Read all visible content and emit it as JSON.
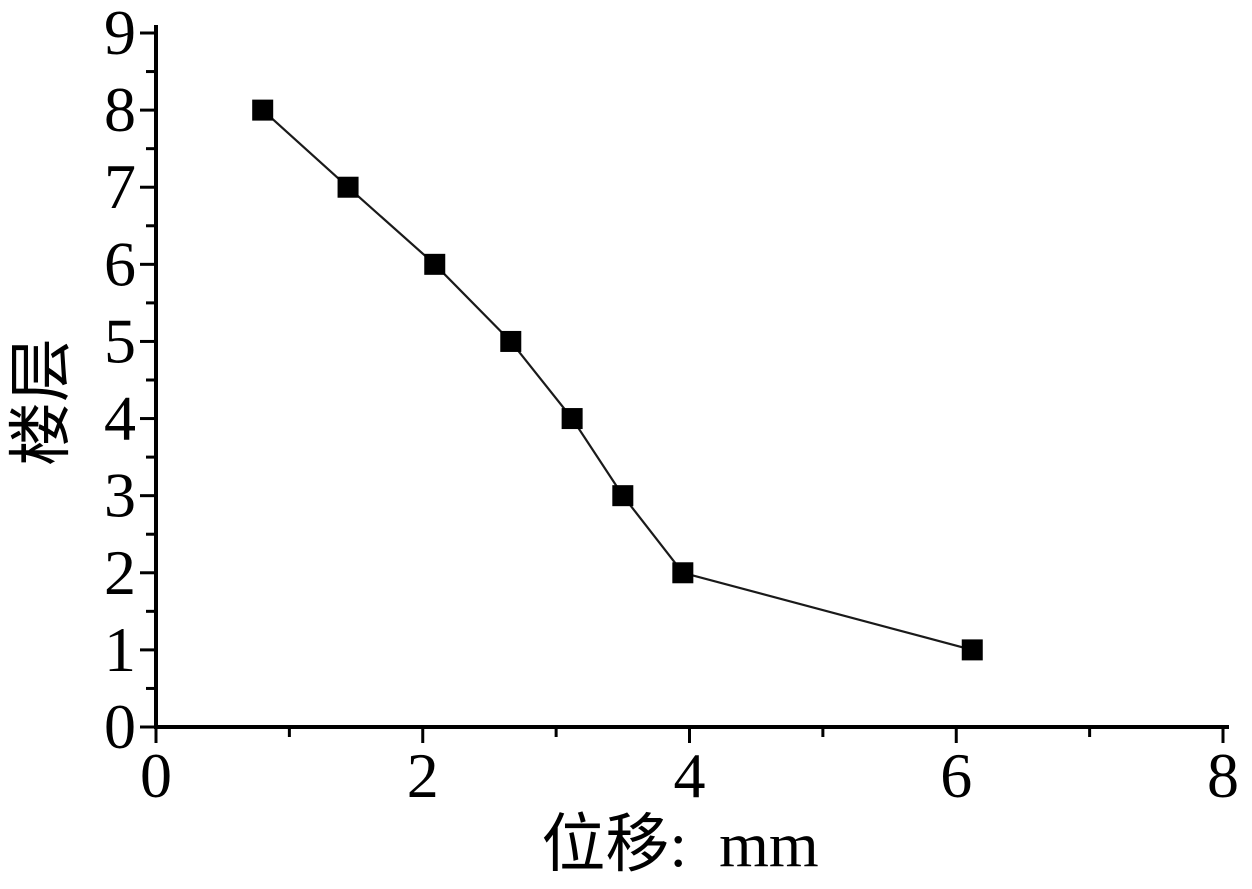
{
  "page": {
    "background": "#ffffff"
  },
  "chart_data": {
    "type": "line",
    "title": "",
    "xlabel": "位移:  mm",
    "ylabel": "楼层",
    "xlim": [
      0,
      8
    ],
    "ylim": [
      0,
      9
    ],
    "grid": false,
    "legend": false,
    "background": "#ffffff",
    "axis_color": "#000000",
    "xticks": {
      "major_values": [
        0,
        2,
        4,
        6,
        8
      ],
      "major_labels": [
        "0",
        "2",
        "4",
        "6",
        "8"
      ],
      "minor_values": [
        1,
        3,
        5,
        7
      ]
    },
    "yticks": {
      "major_values": [
        0,
        1,
        2,
        3,
        4,
        5,
        6,
        7,
        8,
        9
      ],
      "major_labels": [
        "0",
        "1",
        "2",
        "3",
        "4",
        "5",
        "6",
        "7",
        "8",
        "9"
      ],
      "minor_values": [
        0.5,
        1.5,
        2.5,
        3.5,
        4.5,
        5.5,
        6.5,
        7.5,
        8.5
      ]
    },
    "series": [
      {
        "marker": "filled-square",
        "color": "#000000",
        "line_color": "#1a1a1a",
        "points": [
          {
            "x": 0.8,
            "y": 8
          },
          {
            "x": 1.44,
            "y": 7
          },
          {
            "x": 2.09,
            "y": 6
          },
          {
            "x": 2.66,
            "y": 5
          },
          {
            "x": 3.12,
            "y": 4
          },
          {
            "x": 3.5,
            "y": 3
          },
          {
            "x": 3.95,
            "y": 2
          },
          {
            "x": 6.12,
            "y": 1
          }
        ]
      }
    ]
  }
}
